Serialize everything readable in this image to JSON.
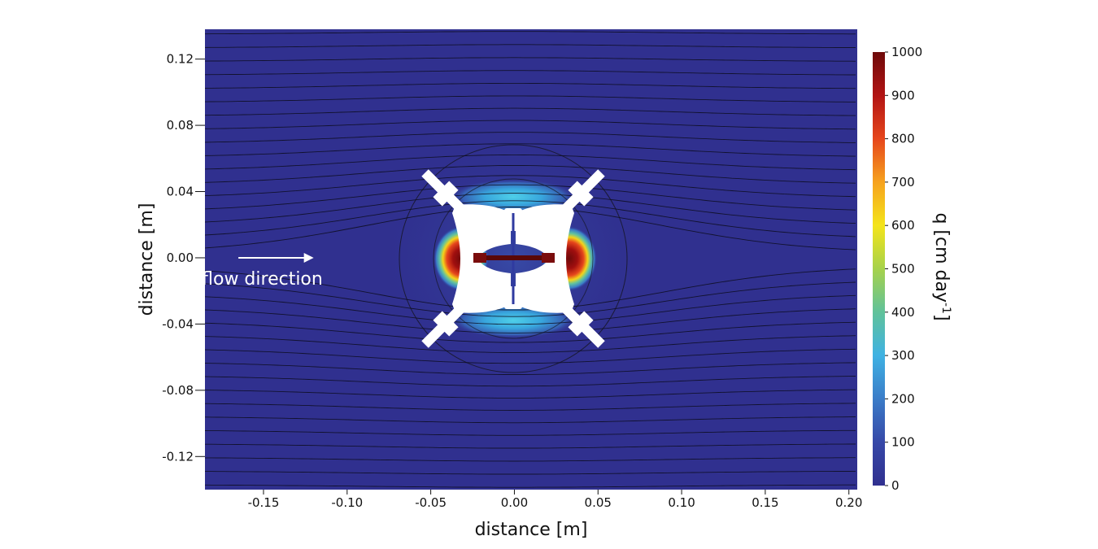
{
  "chart_data": {
    "type": "heatmap",
    "description_text": "",
    "xlabel": "distance [m]",
    "ylabel": "distance [m]",
    "xlim": [
      -0.185,
      0.205
    ],
    "ylim": [
      -0.14,
      0.138
    ],
    "xticks": [
      -0.15,
      -0.1,
      -0.05,
      0.0,
      0.05,
      0.1,
      0.15,
      0.2
    ],
    "xtick_labels": [
      "-0.15",
      "-0.10",
      "-0.05",
      "0.00",
      "0.05",
      "0.10",
      "0.15",
      "0.20"
    ],
    "yticks": [
      0.12,
      0.08,
      0.04,
      0.0,
      -0.04,
      -0.08,
      -0.12
    ],
    "ytick_labels": [
      "0.12",
      "0.08",
      "0.04",
      "0.00",
      "-0.04",
      "-0.08",
      "-0.12"
    ],
    "colorbar": {
      "label_main": "q [cm day",
      "label_sup": "-1",
      "label_end": "]",
      "range": [
        0,
        1000
      ],
      "ticks": [
        0,
        100,
        200,
        300,
        400,
        500,
        600,
        700,
        800,
        900,
        1000
      ],
      "tick_labels": [
        "0",
        "100",
        "200",
        "300",
        "400",
        "500",
        "600",
        "700",
        "800",
        "900",
        "1000"
      ],
      "stops": [
        "#30308f",
        "#3648a8",
        "#3a7cc8",
        "#3fb2e3",
        "#60c29a",
        "#a6d24b",
        "#f4e41a",
        "#f6a21e",
        "#e6461c",
        "#b21414",
        "#6e0a0a"
      ]
    },
    "field": {
      "background_value": 30,
      "high_zones": [
        {
          "name": "left-outlet",
          "x": -0.033,
          "y": 0.0,
          "max_value": 1000
        },
        {
          "name": "right-outlet",
          "x": 0.035,
          "y": 0.0,
          "max_value": 1000
        },
        {
          "name": "top-lens",
          "x": 0.0,
          "y": 0.036,
          "max_value": 250
        },
        {
          "name": "bottom-lens",
          "x": 0.0,
          "y": -0.036,
          "max_value": 250
        }
      ],
      "device_circle_radius": 0.068,
      "streamline_count": 34
    },
    "annotation": {
      "text": "flow direction",
      "arrow_from": [
        -0.165,
        0.0
      ],
      "arrow_to": [
        -0.12,
        0.0
      ]
    }
  }
}
